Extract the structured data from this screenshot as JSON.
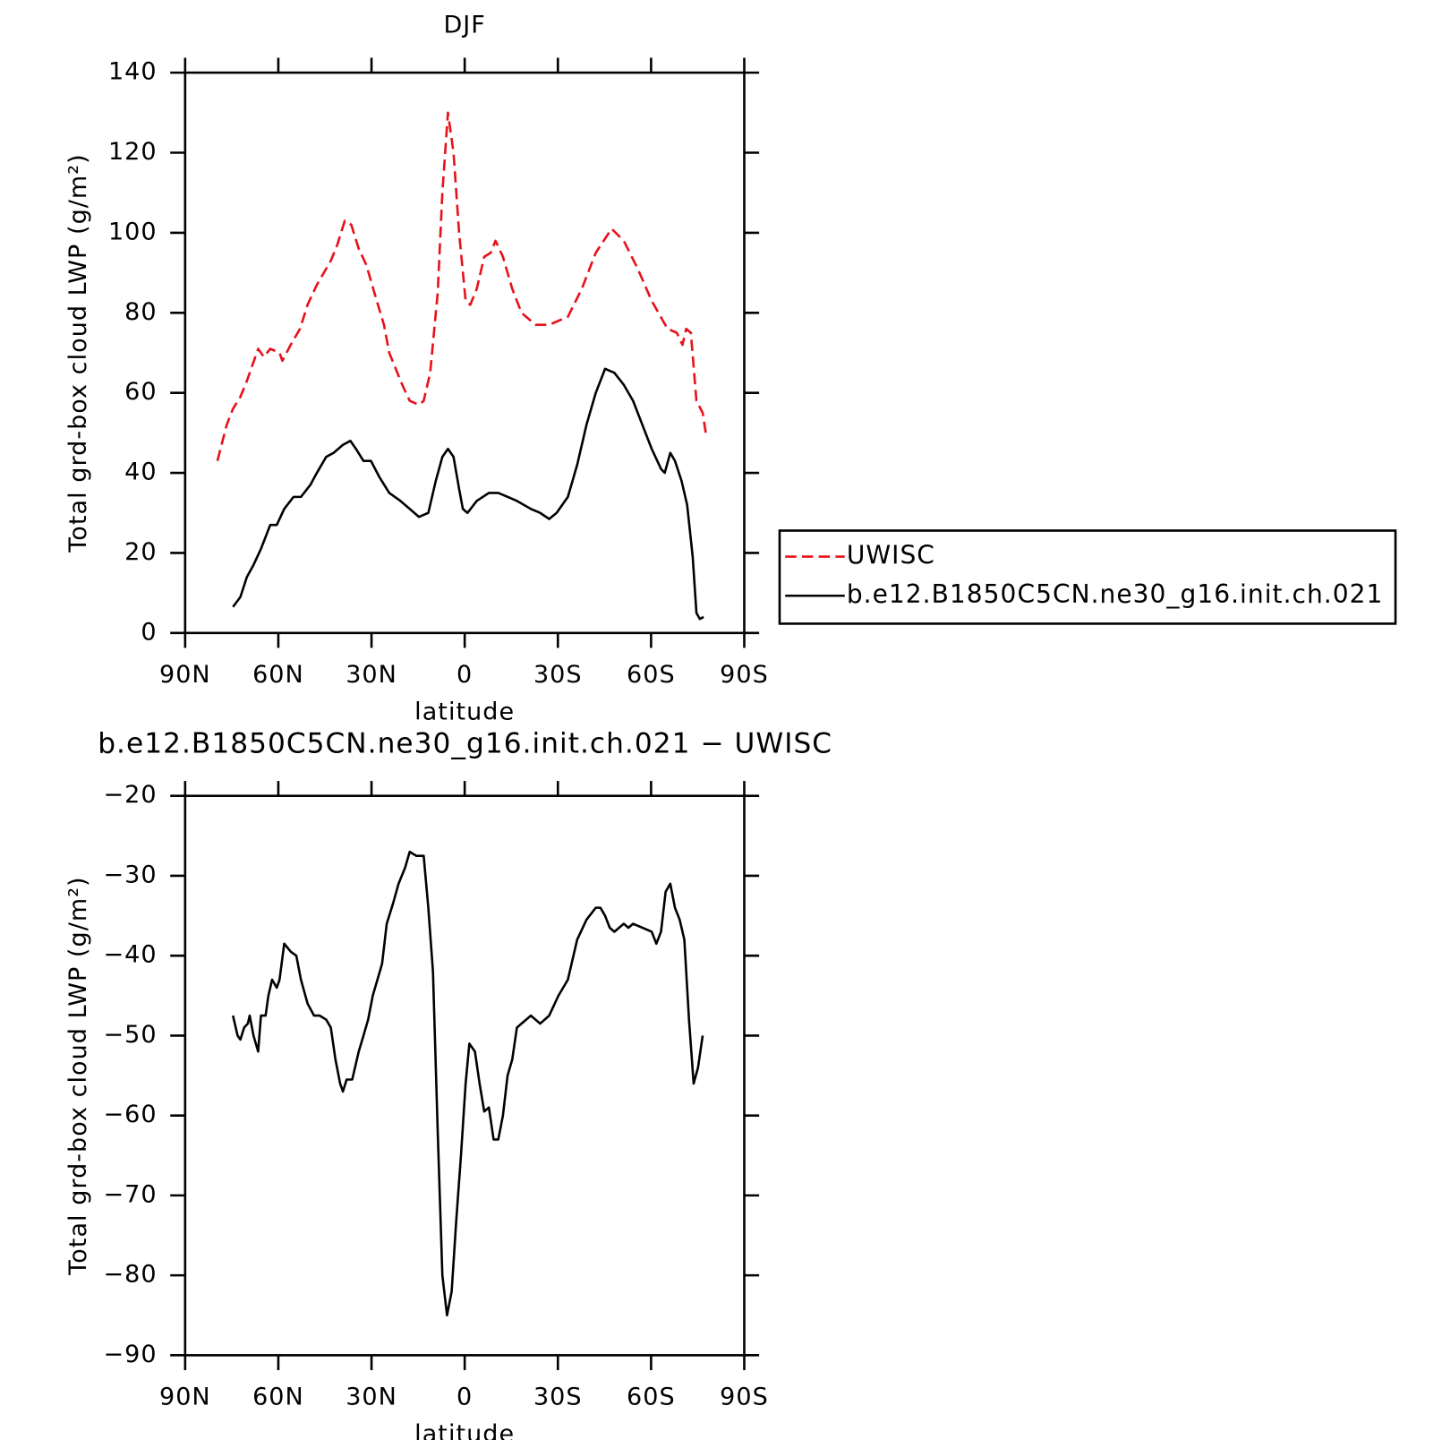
{
  "chart_data": [
    {
      "type": "line",
      "title": "DJF",
      "xlabel": "latitude",
      "ylabel": "Total grd-box cloud LWP (g/m²)",
      "xlim": [
        90,
        -90
      ],
      "xticks": [
        {
          "value": 90,
          "label": "90N"
        },
        {
          "value": 60,
          "label": "60N"
        },
        {
          "value": 30,
          "label": "30N"
        },
        0,
        {
          "value": -30,
          "label": "30S"
        },
        {
          "value": -60,
          "label": "60S"
        },
        {
          "value": -90,
          "label": "90S"
        }
      ],
      "ylim": [
        0,
        140
      ],
      "yticks": [
        0,
        20,
        40,
        60,
        80,
        100,
        120,
        140
      ],
      "legend": "right",
      "series": [
        {
          "name": "UWISC",
          "color": "#e8101a",
          "dash": true,
          "x": [
            79.6,
            76.6,
            74.6,
            72.2,
            70.1,
            66.5,
            64.7,
            62.6,
            59.6,
            58.7,
            56.0,
            53.0,
            50.6,
            47.6,
            43.1,
            41.0,
            38.6,
            36.5,
            34.1,
            31.7,
            28.7,
            26.0,
            24.3,
            22.2,
            20.1,
            17.7,
            14.7,
            13.2,
            11.1,
            8.7,
            7.2,
            5.4,
            3.6,
            1.8,
            -0.3,
            -1.8,
            -3.9,
            -6.3,
            -8.4,
            -9.9,
            -12.3,
            -15.3,
            -18.3,
            -22.8,
            -27.2,
            -33.2,
            -37.7,
            -42.2,
            -47.3,
            -51.2,
            -55.7,
            -60.2,
            -65.3,
            -68.3,
            -70.1,
            -71.3,
            -72.8,
            -74.6,
            -76.6,
            -77.8
          ],
          "values": [
            43,
            52,
            56,
            59,
            63,
            71,
            69,
            71,
            70,
            68,
            72,
            76,
            82,
            87,
            93,
            97,
            103,
            102,
            96,
            92,
            84,
            77,
            70,
            66,
            62,
            58,
            57,
            58,
            65,
            85,
            110,
            130,
            120,
            100,
            83,
            82,
            86,
            94,
            95,
            98,
            94,
            86,
            80,
            77,
            77,
            79,
            86,
            95,
            101,
            98,
            91,
            83,
            76,
            75,
            72,
            76,
            75,
            58,
            55,
            49
          ]
        },
        {
          "name": "b.e12.B1850C5CN.ne30_g16.init.ch.021",
          "color": "#000000",
          "dash": false,
          "x": [
            74.6,
            72.2,
            70.1,
            68.0,
            65.6,
            62.6,
            60.5,
            58.1,
            55.1,
            52.7,
            49.7,
            47.6,
            44.6,
            42.2,
            39.2,
            36.8,
            35.0,
            32.6,
            30.2,
            27.5,
            24.3,
            20.7,
            17.7,
            14.7,
            11.7,
            9.3,
            7.2,
            5.4,
            3.6,
            1.8,
            0.6,
            -0.9,
            -3.9,
            -7.8,
            -10.8,
            -13.8,
            -16.8,
            -21.3,
            -24.3,
            -27.2,
            -29.6,
            -33.2,
            -36.2,
            -39.2,
            -42.2,
            -45.2,
            -48.2,
            -51.2,
            -54.2,
            -57.2,
            -60.2,
            -63.2,
            -64.4,
            -66.2,
            -67.7,
            -69.8,
            -71.6,
            -73.4,
            -74.6,
            -75.7,
            -76.9
          ],
          "values": [
            6.5,
            9,
            14,
            17,
            21,
            27,
            27,
            31,
            34,
            34,
            37,
            40,
            44,
            45,
            47,
            48,
            46,
            43,
            43,
            39,
            35,
            33,
            31,
            29,
            30,
            38,
            44,
            46,
            44,
            36,
            31,
            30,
            33,
            35,
            35,
            34,
            33,
            31,
            30,
            28.5,
            30,
            34,
            42,
            52,
            60,
            66,
            65,
            62,
            58,
            52,
            46,
            41,
            40,
            45,
            43,
            38,
            32,
            19,
            5,
            3.5,
            4
          ]
        }
      ]
    },
    {
      "type": "line",
      "title": "b.e12.B1850C5CN.ne30_g16.init.ch.021 − UWISC",
      "xlabel": "latitude",
      "ylabel": "Total grd-box cloud LWP (g/m²)",
      "xlim": [
        90,
        -90
      ],
      "xticks": [
        {
          "value": 90,
          "label": "90N"
        },
        {
          "value": 60,
          "label": "60N"
        },
        {
          "value": 30,
          "label": "30N"
        },
        0,
        {
          "value": -30,
          "label": "30S"
        },
        {
          "value": -60,
          "label": "60S"
        },
        {
          "value": -90,
          "label": "90S"
        }
      ],
      "ylim": [
        -90,
        -20
      ],
      "yticks": [
        {
          "value": -90,
          "label": "−90"
        },
        {
          "value": -80,
          "label": "−80"
        },
        {
          "value": -70,
          "label": "−70"
        },
        {
          "value": -60,
          "label": "−60"
        },
        {
          "value": -50,
          "label": "−50"
        },
        {
          "value": -40,
          "label": "−40"
        },
        {
          "value": -30,
          "label": "−30"
        },
        {
          "value": -20,
          "label": "−20"
        }
      ],
      "series": [
        {
          "color": "#000000",
          "x": [
            74.6,
            73.1,
            72.2,
            71.0,
            69.8,
            69.2,
            68.0,
            66.5,
            65.6,
            64.1,
            63.2,
            62.0,
            60.5,
            59.6,
            58.1,
            56.0,
            54.2,
            52.7,
            50.6,
            48.5,
            46.7,
            44.6,
            43.1,
            41.6,
            40.1,
            39.2,
            38.0,
            36.2,
            34.1,
            32.6,
            31.1,
            29.6,
            28.1,
            26.6,
            25.1,
            23.1,
            21.3,
            19.2,
            17.7,
            15.6,
            13.2,
            11.7,
            10.2,
            8.7,
            7.2,
            5.7,
            4.2,
            2.7,
            1.2,
            -0.3,
            -1.5,
            -3.3,
            -4.8,
            -6.3,
            -7.8,
            -9.3,
            -10.8,
            -12.3,
            -13.8,
            -15.3,
            -16.8,
            -18.3,
            -21.3,
            -24.3,
            -27.2,
            -30.2,
            -33.2,
            -36.2,
            -39.2,
            -42.2,
            -43.7,
            -45.2,
            -46.7,
            -48.2,
            -49.7,
            -51.2,
            -52.7,
            -54.2,
            -57.2,
            -60.2,
            -61.7,
            -63.2,
            -64.7,
            -66.2,
            -67.7,
            -69.2,
            -70.7,
            -72.2,
            -73.7,
            -75.1,
            -76.6
          ],
          "values": [
            -47.5,
            -50,
            -50.5,
            -49,
            -48.5,
            -47.5,
            -50,
            -52,
            -47.5,
            -47.5,
            -45,
            -43,
            -44,
            -43,
            -38.5,
            -39.5,
            -40,
            -43,
            -46,
            -47.5,
            -47.5,
            -48,
            -49,
            -53,
            -56,
            -57,
            -55.5,
            -55.5,
            -52,
            -50,
            -48,
            -45,
            -43,
            -41,
            -36,
            -33.5,
            -31,
            -29,
            -27,
            -27.5,
            -27.5,
            -34,
            -42,
            -62,
            -80,
            -85,
            -82,
            -73,
            -65,
            -56,
            -51,
            -52,
            -56,
            -59.5,
            -59,
            -63,
            -63,
            -60,
            -55,
            -53,
            -49,
            -48.5,
            -47.5,
            -48.5,
            -47.5,
            -45,
            -43,
            -38,
            -35.5,
            -34,
            -34,
            -35,
            -36.5,
            -37,
            -36.5,
            -36,
            -36.5,
            -36,
            -36.5,
            -37,
            -38.5,
            -37,
            -32,
            -31,
            -34,
            -35.5,
            -38,
            -48,
            -56,
            -54,
            -50
          ]
        }
      ]
    }
  ]
}
